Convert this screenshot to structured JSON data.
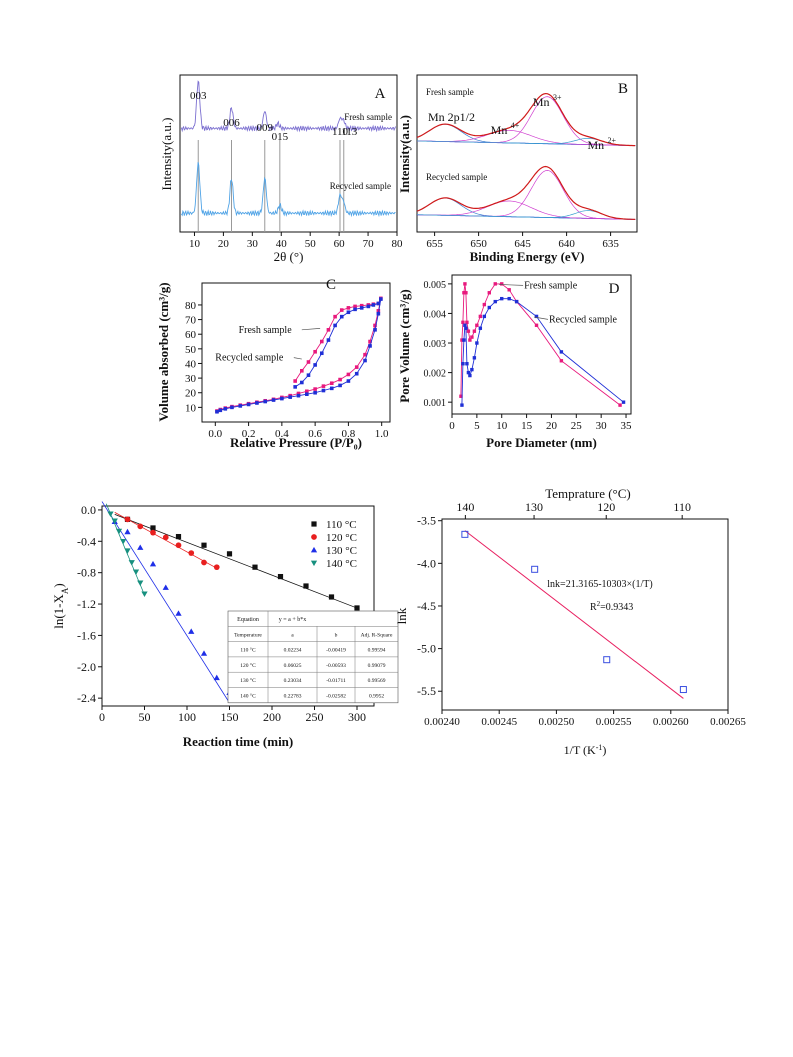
{
  "chart_data": [
    {
      "type": "line",
      "panel": "A",
      "xlabel": "2θ (°)",
      "ylabel": "Intensity(a.u.)",
      "xlim": [
        5,
        80
      ],
      "xticks": [
        10,
        20,
        30,
        40,
        50,
        60,
        70,
        80
      ],
      "xtick_labels": [
        "10",
        "20",
        "30",
        "40",
        "50",
        "60",
        "70",
        "80"
      ],
      "series": [
        {
          "name": "Fresh sample",
          "color": "#7b6fd0",
          "baseline": 0.66,
          "peaks": [
            [
              11.3,
              0.3
            ],
            [
              22.8,
              0.13
            ],
            [
              34.3,
              0.11
            ],
            [
              38.8,
              0.03
            ],
            [
              60.3,
              0.06
            ],
            [
              61.5,
              0.05
            ]
          ]
        },
        {
          "name": "Recycled sample",
          "color": "#4fa3e6",
          "baseline": 0.12,
          "peaks": [
            [
              11.3,
              0.32
            ],
            [
              22.8,
              0.22
            ],
            [
              34.3,
              0.22
            ],
            [
              39.5,
              0.05
            ],
            [
              60.3,
              0.11
            ],
            [
              61.5,
              0.07
            ]
          ]
        }
      ],
      "peak_labels": [
        {
          "text": "003",
          "x": 11.3
        },
        {
          "text": "006",
          "x": 22.8
        },
        {
          "text": "009",
          "x": 34.3
        },
        {
          "text": "015",
          "x": 39.5
        },
        {
          "text": "110",
          "x": 60.3
        },
        {
          "text": "113",
          "x": 63.5
        }
      ],
      "ref_lines": [
        11.3,
        22.8,
        34.3,
        39.5,
        60.3,
        61.6
      ]
    },
    {
      "type": "line",
      "panel": "B",
      "xlabel": "Binding Energy (eV)",
      "ylabel": "Intensity(a.u.)",
      "xlim": [
        657,
        632
      ],
      "xticks": [
        655,
        650,
        645,
        640,
        635
      ],
      "xtick_labels": [
        "655",
        "650",
        "645",
        "640",
        "635"
      ],
      "series": [
        {
          "name": "Fresh sample",
          "offset": 0.52,
          "components": [
            [
              653.8,
              1.8,
              0.11
            ],
            [
              646.5,
              2.5,
              0.08
            ],
            [
              642.2,
              1.8,
              0.3
            ],
            [
              637.5,
              1.5,
              0.04
            ]
          ]
        },
        {
          "name": "Recycled sample",
          "offset": 0.05,
          "components": [
            [
              653.8,
              1.8,
              0.11
            ],
            [
              646.5,
              2.5,
              0.1
            ],
            [
              642.2,
              1.8,
              0.3
            ],
            [
              637.5,
              1.5,
              0.05
            ]
          ]
        }
      ],
      "annotations": [
        {
          "text": "Mn 2p1/2",
          "x": 653.8
        },
        {
          "text": "Mn",
          "sup": "4+",
          "x": 647.0
        },
        {
          "text": "Mn",
          "sup": "3+",
          "x": 642.2
        },
        {
          "text": "Mn",
          "sup": "2+",
          "x": 636.0
        }
      ]
    },
    {
      "type": "scatter",
      "panel": "C",
      "xlabel": "Relative Pressure (P/P₀)",
      "ylabel": "Volume absorbed (cm³/g)",
      "xlim": [
        -0.08,
        1.05
      ],
      "ylim": [
        0,
        95
      ],
      "xticks": [
        0.0,
        0.2,
        0.4,
        0.6,
        0.8,
        1.0
      ],
      "xtick_labels": [
        "0.0",
        "0.2",
        "0.4",
        "0.6",
        "0.8",
        "1.0"
      ],
      "yticks": [
        10,
        20,
        30,
        40,
        50,
        60,
        70,
        80
      ],
      "ytick_labels": [
        "10",
        "20",
        "30",
        "40",
        "50",
        "60",
        "70",
        "80"
      ],
      "series": [
        {
          "name": "Fresh sample",
          "color": "#e8197d",
          "x": [
            0.01,
            0.03,
            0.06,
            0.1,
            0.15,
            0.2,
            0.25,
            0.3,
            0.35,
            0.4,
            0.45,
            0.5,
            0.55,
            0.6,
            0.65,
            0.7,
            0.75,
            0.8,
            0.85,
            0.9,
            0.93,
            0.96,
            0.98,
            0.995,
            0.98,
            0.95,
            0.92,
            0.88,
            0.84,
            0.8,
            0.76,
            0.72,
            0.68,
            0.64,
            0.6,
            0.56,
            0.52,
            0.48
          ],
          "y": [
            7.5,
            8.5,
            9.5,
            10.5,
            11.5,
            12.5,
            13.5,
            14.5,
            15.5,
            16.8,
            18.0,
            19.5,
            21.0,
            22.5,
            24.5,
            26.5,
            29.0,
            32.5,
            37.5,
            46.0,
            55.0,
            66.0,
            76.0,
            84.5,
            81.0,
            80.5,
            80.0,
            79.5,
            79.0,
            78.0,
            76.5,
            72.0,
            63.0,
            55.0,
            48.0,
            41.0,
            35.0,
            28.0
          ]
        },
        {
          "name": "Recycled sample",
          "color": "#1f2fd6",
          "x": [
            0.01,
            0.03,
            0.06,
            0.1,
            0.15,
            0.2,
            0.25,
            0.3,
            0.35,
            0.4,
            0.45,
            0.5,
            0.55,
            0.6,
            0.65,
            0.7,
            0.75,
            0.8,
            0.85,
            0.9,
            0.93,
            0.96,
            0.98,
            0.995,
            0.98,
            0.95,
            0.92,
            0.88,
            0.84,
            0.8,
            0.76,
            0.72,
            0.68,
            0.64,
            0.6,
            0.56,
            0.52,
            0.48
          ],
          "y": [
            7.0,
            8.0,
            9.0,
            10.0,
            11.0,
            12.0,
            13.0,
            14.0,
            15.0,
            16.0,
            17.0,
            18.0,
            19.0,
            20.0,
            21.5,
            23.0,
            25.0,
            28.0,
            33.0,
            42.0,
            52.0,
            63.0,
            74.0,
            84.0,
            81.0,
            80.0,
            79.0,
            78.0,
            77.0,
            75.0,
            72.0,
            66.0,
            56.0,
            47.0,
            39.0,
            32.0,
            27.0,
            24.0
          ]
        }
      ],
      "labels": [
        {
          "text": "Fresh sample",
          "lx": 0.14,
          "ly": 63,
          "ax": 0.63,
          "ay": 64
        },
        {
          "text": "Recycled sample",
          "lx": 0.0,
          "ly": 44,
          "ax": 0.52,
          "ay": 43
        }
      ],
      "panel_label": "C"
    },
    {
      "type": "line",
      "panel": "D",
      "xlabel": "Pore Diameter (nm)",
      "ylabel": "Pore Volume (cm³/g)",
      "xlim": [
        0,
        36
      ],
      "ylim": [
        0.0006,
        0.0053
      ],
      "xticks": [
        0,
        5,
        10,
        15,
        20,
        25,
        30,
        35
      ],
      "xtick_labels": [
        "0",
        "5",
        "10",
        "15",
        "20",
        "25",
        "30",
        "35"
      ],
      "yticks": [
        0.001,
        0.002,
        0.003,
        0.004,
        0.005
      ],
      "ytick_labels": [
        "0.001",
        "0.002",
        "0.003",
        "0.004",
        "0.005"
      ],
      "series": [
        {
          "name": "Fresh sample",
          "color": "#e8197d",
          "x": [
            1.8,
            2.0,
            2.2,
            2.4,
            2.6,
            2.8,
            3.0,
            3.3,
            3.6,
            4.0,
            4.5,
            5.0,
            5.7,
            6.5,
            7.5,
            8.7,
            10.0,
            11.5,
            13.0,
            17.0,
            22.0,
            33.8
          ],
          "y": [
            0.0012,
            0.0031,
            0.0037,
            0.0047,
            0.005,
            0.0047,
            0.0037,
            0.0034,
            0.0031,
            0.0032,
            0.0034,
            0.0036,
            0.0039,
            0.0043,
            0.0047,
            0.005,
            0.005,
            0.0048,
            0.0044,
            0.0036,
            0.0024,
            0.0009
          ]
        },
        {
          "name": "Recycled sample",
          "color": "#1f2fd6",
          "x": [
            2.0,
            2.2,
            2.4,
            2.6,
            2.8,
            3.0,
            3.3,
            3.6,
            4.0,
            4.5,
            5.0,
            5.7,
            6.5,
            7.5,
            8.7,
            10.0,
            11.5,
            13.0,
            17.0,
            22.0,
            34.5
          ],
          "y": [
            0.0009,
            0.0023,
            0.0031,
            0.0036,
            0.0035,
            0.0023,
            0.002,
            0.0019,
            0.0021,
            0.0025,
            0.003,
            0.0035,
            0.0039,
            0.0042,
            0.0044,
            0.0045,
            0.0045,
            0.0044,
            0.0039,
            0.0027,
            0.001
          ]
        }
      ],
      "labels": [
        {
          "text": "Fresh sample",
          "lx": 14.5,
          "ly": 0.00495,
          "ax": 9.5,
          "ay": 0.00498
        },
        {
          "text": "Recycled sample",
          "lx": 19.5,
          "ly": 0.0038,
          "ax": 16.5,
          "ay": 0.00388
        }
      ],
      "panel_label": "D"
    },
    {
      "type": "scatter",
      "panel": "kinetics",
      "xlabel": "Reaction time (min)",
      "ylabel": "ln(1-X",
      "ylabel_sub": "A",
      "ylabel_end": ")",
      "xlim": [
        0,
        320
      ],
      "ylim": [
        -2.5,
        0.05
      ],
      "xticks": [
        0,
        50,
        100,
        150,
        200,
        250,
        300
      ],
      "xtick_labels": [
        "0",
        "50",
        "100",
        "150",
        "200",
        "250",
        "300"
      ],
      "yticks": [
        0.0,
        -0.4,
        -0.8,
        -1.2,
        -1.6,
        -2.0,
        -2.4
      ],
      "ytick_labels": [
        "0.0",
        "-0.4",
        "-0.8",
        "-1.2",
        "-1.6",
        "-2.0",
        "-2.4"
      ],
      "series": [
        {
          "name": "110 °C",
          "color": "#111111",
          "marker": "square",
          "a": 0.02234,
          "b": -0.00419,
          "x": [
            30,
            60,
            90,
            120,
            150,
            180,
            210,
            240,
            270,
            300
          ],
          "y": [
            -0.12,
            -0.23,
            -0.34,
            -0.45,
            -0.56,
            -0.73,
            -0.85,
            -0.97,
            -1.11,
            -1.25
          ]
        },
        {
          "name": "120 °C",
          "color": "#e81f1f",
          "marker": "circle",
          "a": 0.06025,
          "b": -0.00593,
          "x": [
            30,
            45,
            60,
            75,
            90,
            105,
            120,
            135
          ],
          "y": [
            -0.12,
            -0.21,
            -0.29,
            -0.35,
            -0.45,
            -0.55,
            -0.67,
            -0.73
          ]
        },
        {
          "name": "130 °C",
          "color": "#1f2fe8",
          "marker": "triangle",
          "a": 0.23034,
          "b": -0.01711,
          "x": [
            15,
            30,
            45,
            60,
            75,
            90,
            105,
            120,
            135,
            150
          ],
          "y": [
            -0.15,
            -0.28,
            -0.48,
            -0.69,
            -0.99,
            -1.32,
            -1.55,
            -1.83,
            -2.14,
            -2.33
          ]
        },
        {
          "name": "140 °C",
          "color": "#17907f",
          "marker": "triangle-down",
          "a": 0.22783,
          "b": -0.02582,
          "x": [
            10,
            15,
            20,
            25,
            30,
            35,
            40,
            45,
            50
          ],
          "y": [
            -0.05,
            -0.14,
            -0.27,
            -0.4,
            -0.52,
            -0.67,
            -0.79,
            -0.93,
            -1.07
          ]
        }
      ],
      "table": {
        "header": [
          "Equation",
          "y = a + b*x",
          "",
          ""
        ],
        "columns": [
          "Temperature",
          "a",
          "b",
          "Adj. R-Square"
        ],
        "rows": [
          [
            "110 °C",
            "0.02234",
            "-0.00419",
            "0.99594"
          ],
          [
            "120 °C",
            "0.06025",
            "-0.00593",
            "0.99079"
          ],
          [
            "130 °C",
            "0.23034",
            "-0.01711",
            "0.99569"
          ],
          [
            "140 °C",
            "0.22783",
            "-0.02582",
            "0.9952"
          ]
        ]
      }
    },
    {
      "type": "scatter",
      "panel": "arrhenius",
      "xlabel": "1/T (K",
      "xlabel_sup": "-1",
      "xlabel_end": ")",
      "ylabel": "lnk",
      "top_xlabel": "Temprature (°C)",
      "xlim": [
        0.0024,
        0.00265
      ],
      "ylim": [
        -5.72,
        -3.48
      ],
      "xticks": [
        0.0024,
        0.00245,
        0.0025,
        0.00255,
        0.0026,
        0.00265
      ],
      "xtick_labels": [
        "0.00240",
        "0.00245",
        "0.00250",
        "0.00255",
        "0.00260",
        "0.00265"
      ],
      "yticks": [
        -3.5,
        -4.0,
        -4.5,
        -5.0,
        -5.5
      ],
      "ytick_labels": [
        "-3.5",
        "-4.0",
        "-4.5",
        "-5.0",
        "-5.5"
      ],
      "top_xticks": [
        140,
        130,
        120,
        110
      ],
      "top_xtick_labels": [
        "140",
        "130",
        "120",
        "110"
      ],
      "series": [
        {
          "name": "lnk",
          "color": "#3a4fe0",
          "x": [
            0.00242,
            0.002481,
            0.002544,
            0.002611
          ],
          "y": [
            -3.66,
            -4.07,
            -5.13,
            -5.48
          ]
        }
      ],
      "fit": {
        "intercept": 21.3165,
        "slope": -10303,
        "color": "#e81f60"
      },
      "equation": "lnk=21.3165-10303×(1/T)",
      "r2_prefix": "R",
      "r2_sup": "2",
      "r2_value": "=0.9343"
    }
  ]
}
